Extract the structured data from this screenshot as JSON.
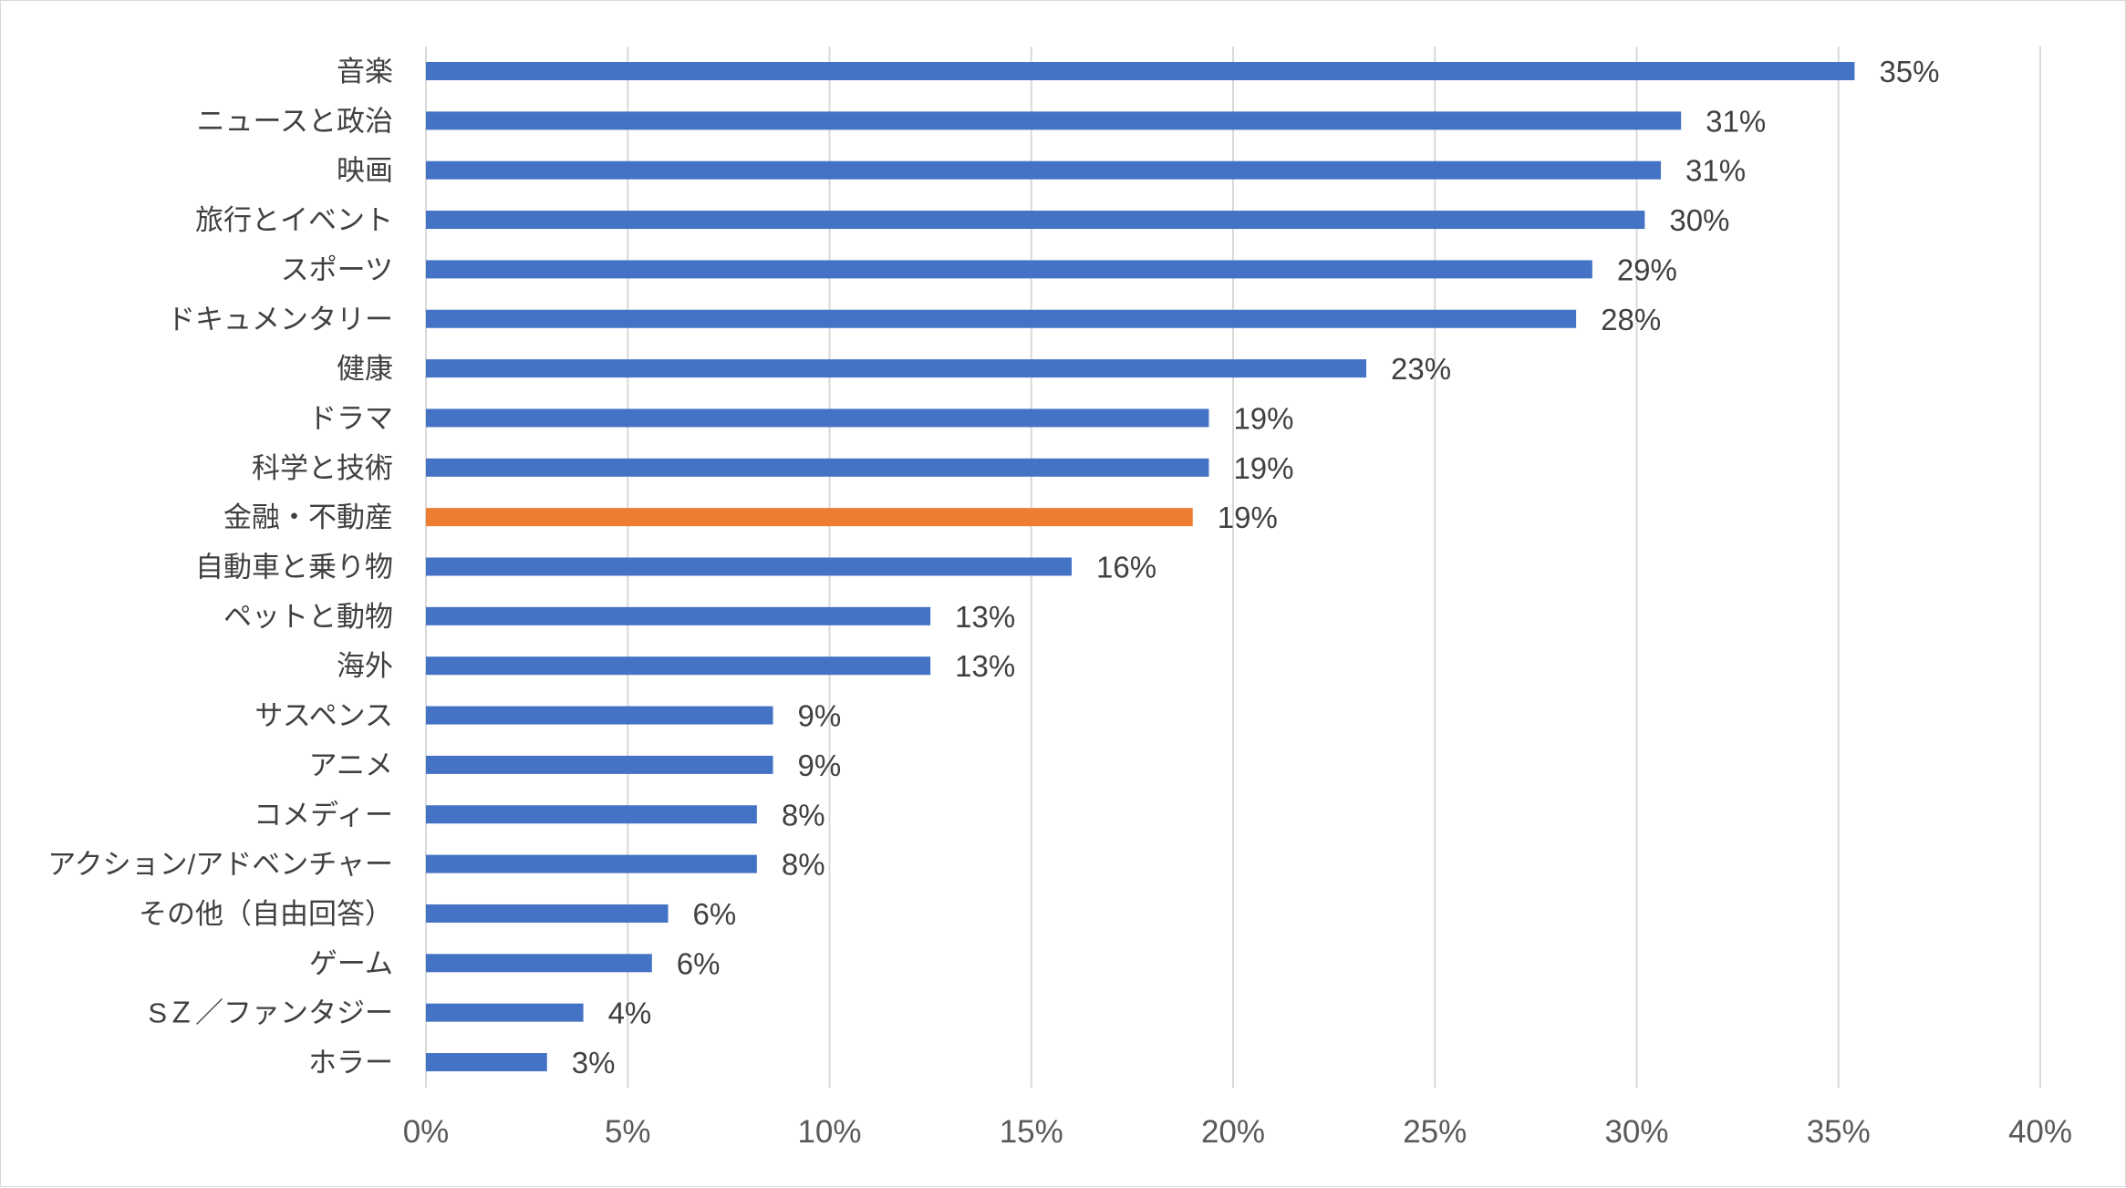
{
  "chart_data": {
    "type": "bar",
    "orientation": "horizontal",
    "categories": [
      "音楽",
      "ニュースと政治",
      "映画",
      "旅行とイベント",
      "スポーツ",
      "ドキュメンタリー",
      "健康",
      "ドラマ",
      "科学と技術",
      "金融・不動産",
      "自動車と乗り物",
      "ペットと動物",
      "海外",
      "サスペンス",
      "アニメ",
      "コメディー",
      "アクション/アドベンチャー",
      "その他（自由回答）",
      "ゲーム",
      "SＺ／ファンタジー",
      "ホラー"
    ],
    "values": [
      35.4,
      31.1,
      30.6,
      30.2,
      28.9,
      28.5,
      23.3,
      19.4,
      19.4,
      19.0,
      16.0,
      12.5,
      12.5,
      8.6,
      8.6,
      8.2,
      8.2,
      6.0,
      5.6,
      3.9,
      3.0
    ],
    "value_labels": [
      "35%",
      "31%",
      "31%",
      "30%",
      "29%",
      "28%",
      "23%",
      "19%",
      "19%",
      "19%",
      "16%",
      "13%",
      "13%",
      "9%",
      "9%",
      "8%",
      "8%",
      "6%",
      "6%",
      "4%",
      "3%"
    ],
    "highlight_index": 9,
    "xlim": [
      0,
      40
    ],
    "xticks": [
      0,
      5,
      10,
      15,
      20,
      25,
      30,
      35,
      40
    ],
    "xtick_labels": [
      "0%",
      "5%",
      "10%",
      "15%",
      "20%",
      "25%",
      "30%",
      "35%",
      "40%"
    ],
    "grid": true,
    "title": "",
    "xlabel": "",
    "ylabel": "",
    "colors": {
      "default": "#4472c4",
      "highlight": "#ed7d31",
      "grid": "#d9d9d9",
      "text": "#404040"
    }
  }
}
